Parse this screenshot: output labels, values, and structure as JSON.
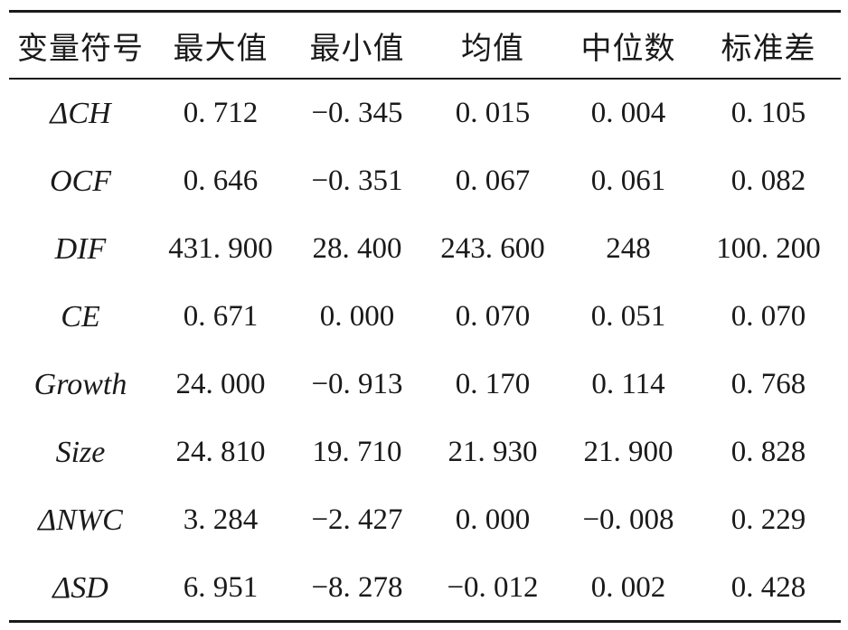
{
  "table": {
    "headers": [
      "变量符号",
      "最大值",
      "最小值",
      "均值",
      "中位数",
      "标准差"
    ],
    "rows": [
      [
        "ΔCH",
        "0. 712",
        "−0. 345",
        "0. 015",
        "0. 004",
        "0. 105"
      ],
      [
        "OCF",
        "0. 646",
        "−0. 351",
        "0. 067",
        "0. 061",
        "0. 082"
      ],
      [
        "DIF",
        "431. 900",
        "28. 400",
        "243. 600",
        "248",
        "100. 200"
      ],
      [
        "CE",
        "0. 671",
        "0. 000",
        "0. 070",
        "0. 051",
        "0. 070"
      ],
      [
        "Growth",
        "24. 000",
        "−0. 913",
        "0. 170",
        "0. 114",
        "0. 768"
      ],
      [
        "Size",
        "24. 810",
        "19. 710",
        "21. 930",
        "21. 900",
        "0. 828"
      ],
      [
        "ΔNWC",
        "3. 284",
        "−2. 427",
        "0. 000",
        "−0. 008",
        "0. 229"
      ],
      [
        "ΔSD",
        "6. 951",
        "−8. 278",
        "−0. 012",
        "0. 002",
        "0. 428"
      ]
    ]
  }
}
